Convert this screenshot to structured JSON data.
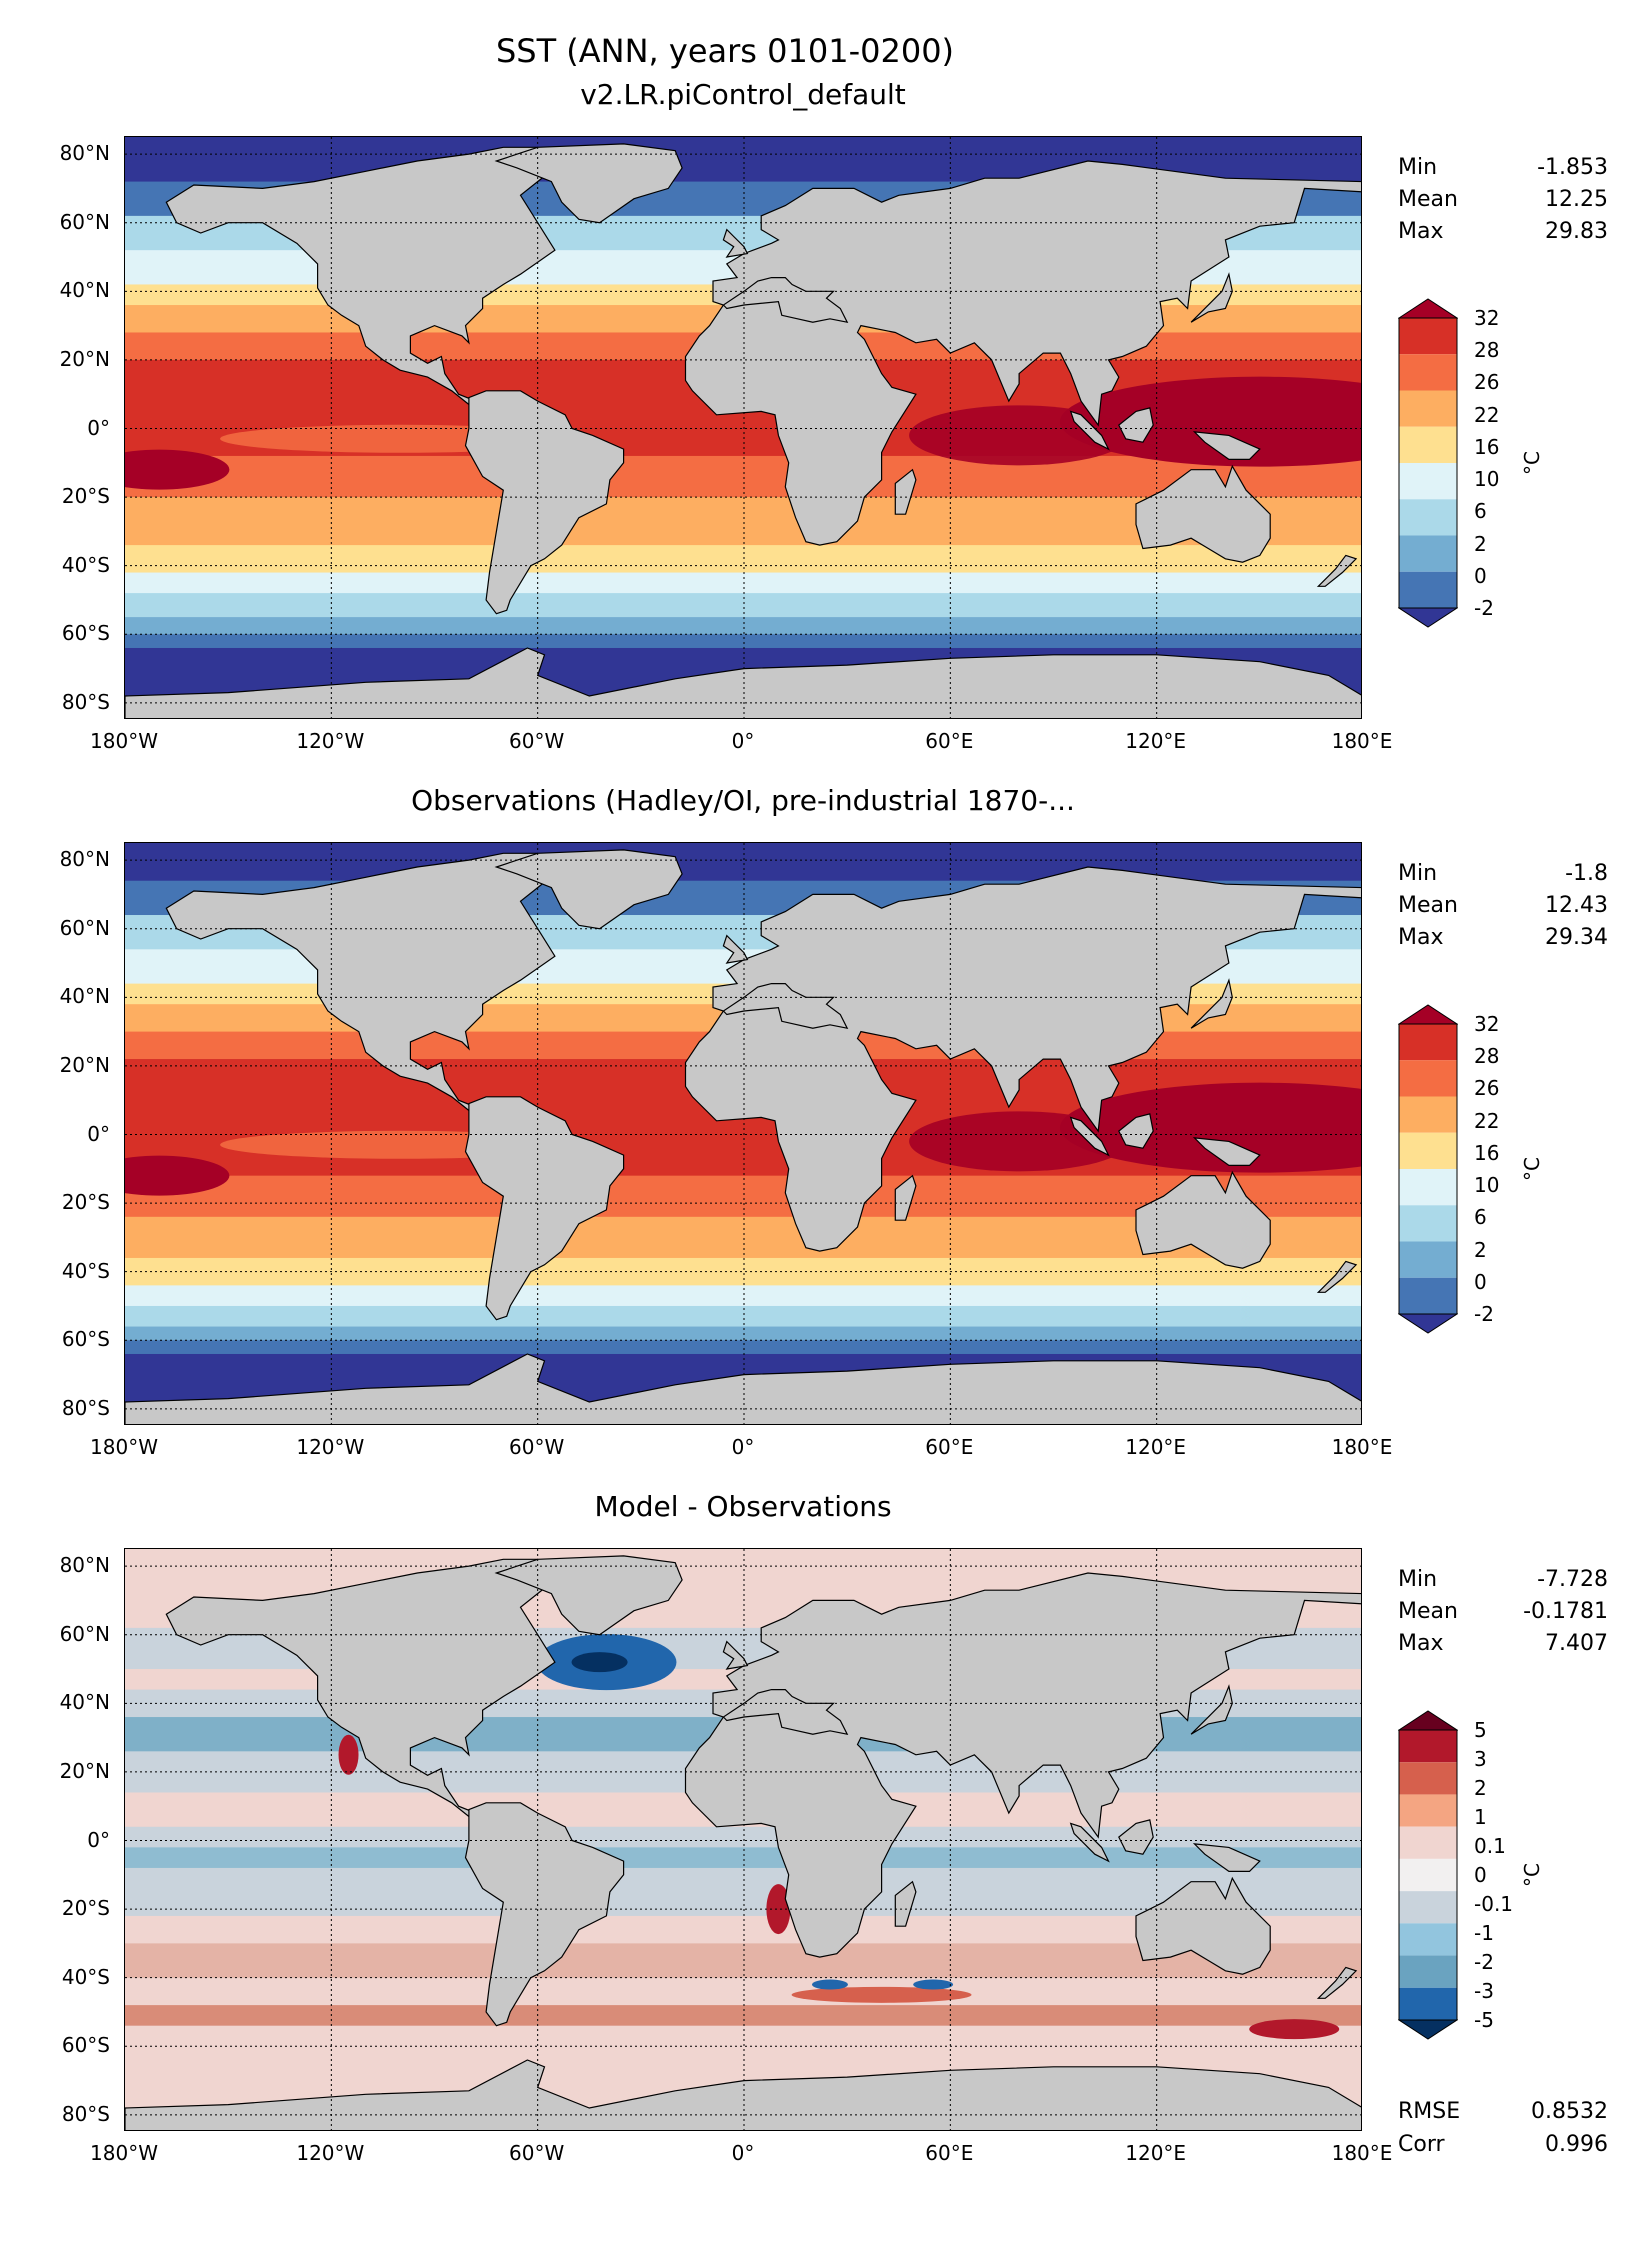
{
  "title": "SST (ANN, years 0101-0200)",
  "lat_labels": [
    "80°N",
    "60°N",
    "40°N",
    "20°N",
    "0°",
    "20°S",
    "40°S",
    "60°S",
    "80°S"
  ],
  "lon_labels": [
    "180°W",
    "120°W",
    "60°W",
    "0°",
    "60°E",
    "120°E",
    "180°E"
  ],
  "panels": [
    {
      "title": "v2.LR.piControl_default",
      "stats": {
        "min_label": "Min",
        "min": "-1.853",
        "mean_label": "Mean",
        "mean": "12.25",
        "max_label": "Max",
        "max": "29.83"
      },
      "colorbar": {
        "unit": "°C",
        "ticks": [
          "32",
          "28",
          "26",
          "22",
          "16",
          "10",
          "6",
          "2",
          "0",
          "-2"
        ],
        "colors": [
          "#a50026",
          "#d73027",
          "#f46d43",
          "#fdae61",
          "#fee090",
          "#e0f3f8",
          "#abd9e9",
          "#74add1",
          "#4575b4",
          "#313695"
        ]
      },
      "bands": [
        {
          "lat": 90,
          "c": "#313695"
        },
        {
          "lat": 72,
          "c": "#4575b4"
        },
        {
          "lat": 62,
          "c": "#abd9e9"
        },
        {
          "lat": 52,
          "c": "#e0f3f8"
        },
        {
          "lat": 42,
          "c": "#fee090"
        },
        {
          "lat": 36,
          "c": "#fdae61"
        },
        {
          "lat": 28,
          "c": "#f46d43"
        },
        {
          "lat": 20,
          "c": "#d73027"
        },
        {
          "lat": -8,
          "c": "#f46d43"
        },
        {
          "lat": -20,
          "c": "#fdae61"
        },
        {
          "lat": -34,
          "c": "#fee090"
        },
        {
          "lat": -42,
          "c": "#e0f3f8"
        },
        {
          "lat": -48,
          "c": "#abd9e9"
        },
        {
          "lat": -55,
          "c": "#74add1"
        },
        {
          "lat": -60,
          "c": "#4575b4"
        },
        {
          "lat": -64,
          "c": "#313695"
        }
      ],
      "warm_pool_color": "#a50026"
    },
    {
      "title": "Observations (Hadley/OI, pre-industrial 1870-...",
      "stats": {
        "min_label": "Min",
        "min": "-1.8",
        "mean_label": "Mean",
        "mean": "12.43",
        "max_label": "Max",
        "max": "29.34"
      },
      "colorbar": {
        "unit": "°C",
        "ticks": [
          "32",
          "28",
          "26",
          "22",
          "16",
          "10",
          "6",
          "2",
          "0",
          "-2"
        ],
        "colors": [
          "#a50026",
          "#d73027",
          "#f46d43",
          "#fdae61",
          "#fee090",
          "#e0f3f8",
          "#abd9e9",
          "#74add1",
          "#4575b4",
          "#313695"
        ]
      },
      "bands": [
        {
          "lat": 90,
          "c": "#313695"
        },
        {
          "lat": 74,
          "c": "#4575b4"
        },
        {
          "lat": 64,
          "c": "#abd9e9"
        },
        {
          "lat": 54,
          "c": "#e0f3f8"
        },
        {
          "lat": 44,
          "c": "#fee090"
        },
        {
          "lat": 38,
          "c": "#fdae61"
        },
        {
          "lat": 30,
          "c": "#f46d43"
        },
        {
          "lat": 22,
          "c": "#d73027"
        },
        {
          "lat": -12,
          "c": "#f46d43"
        },
        {
          "lat": -24,
          "c": "#fdae61"
        },
        {
          "lat": -36,
          "c": "#fee090"
        },
        {
          "lat": -44,
          "c": "#e0f3f8"
        },
        {
          "lat": -50,
          "c": "#abd9e9"
        },
        {
          "lat": -56,
          "c": "#74add1"
        },
        {
          "lat": -60,
          "c": "#4575b4"
        },
        {
          "lat": -64,
          "c": "#313695"
        }
      ],
      "warm_pool_color": "#a50026"
    },
    {
      "title": "Model - Observations",
      "stats": {
        "min_label": "Min",
        "min": "-7.728",
        "mean_label": "Mean",
        "mean": "-0.1781",
        "max_label": "Max",
        "max": "7.407"
      },
      "colorbar": {
        "unit": "°C",
        "ticks": [
          "5",
          "3",
          "2",
          "1",
          "0.1",
          "0",
          "-0.1",
          "-1",
          "-2",
          "-3",
          "-5"
        ],
        "colors": [
          "#67001f",
          "#b2182b",
          "#d6604d",
          "#f4a582",
          "#f0d5d0",
          "#f2f0f0",
          "#c9d3dc",
          "#92c5de",
          "#6aa3c0",
          "#2166ac",
          "#053061"
        ]
      },
      "bands": [
        {
          "lat": 90,
          "c": "#f0d5d0"
        },
        {
          "lat": 62,
          "c": "#c9d3dc"
        },
        {
          "lat": 50,
          "c": "#f0d5d0"
        },
        {
          "lat": 44,
          "c": "#c9d3dc"
        },
        {
          "lat": 36,
          "c": "#7fb0c8"
        },
        {
          "lat": 26,
          "c": "#c9d3dc"
        },
        {
          "lat": 14,
          "c": "#f0d5d0"
        },
        {
          "lat": 4,
          "c": "#c9d3dc"
        },
        {
          "lat": -2,
          "c": "#8fbcd1"
        },
        {
          "lat": -8,
          "c": "#c9d3dc"
        },
        {
          "lat": -22,
          "c": "#f0d5d0"
        },
        {
          "lat": -30,
          "c": "#e4b3a6"
        },
        {
          "lat": -40,
          "c": "#f0d5d0"
        },
        {
          "lat": -48,
          "c": "#d98c78"
        },
        {
          "lat": -54,
          "c": "#f0d5d0"
        },
        {
          "lat": -62,
          "c": "#f0d5d0"
        }
      ],
      "warm_pool_color": "#c9d3dc",
      "error": {
        "rmse_label": "RMSE",
        "rmse": "0.8532",
        "corr_label": "Corr",
        "corr": "0.996"
      }
    }
  ]
}
